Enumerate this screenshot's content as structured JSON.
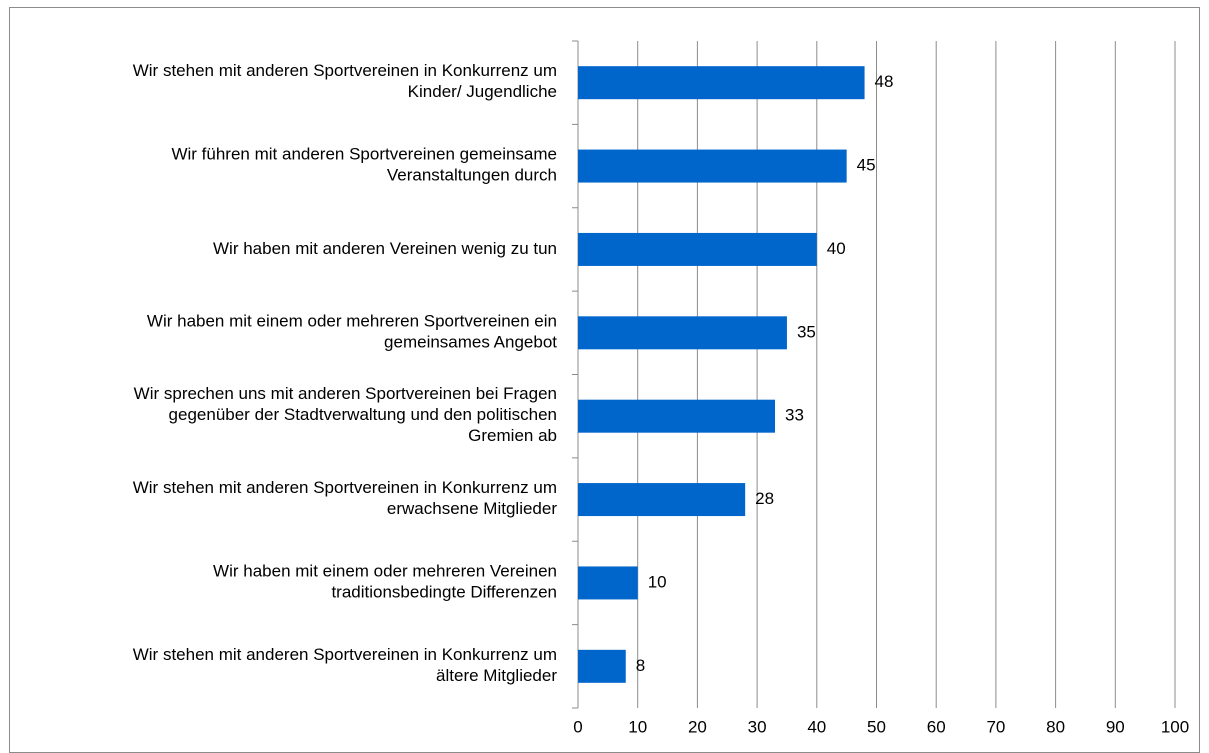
{
  "chart_data": {
    "type": "bar",
    "orientation": "horizontal",
    "categories": [
      "Wir stehen mit anderen Sportvereinen in Konkurrenz um\nKinder/ Jugendliche",
      "Wir führen mit anderen Sportvereinen gemeinsame\nVeranstaltungen durch",
      "Wir haben mit anderen Vereinen wenig zu tun",
      "Wir haben mit einem oder mehreren Sportvereinen ein\ngemeinsames Angebot",
      "Wir sprechen uns mit anderen Sportvereinen bei Fragen\ngegenüber der Stadtverwaltung und den politischen\nGremien ab",
      "Wir stehen mit anderen Sportvereinen in Konkurrenz um\nerwachsene Mitglieder",
      "Wir haben mit einem oder mehreren Vereinen\ntraditionsbedingte Differenzen",
      "Wir stehen mit anderen Sportvereinen in Konkurrenz um\nältere Mitglieder"
    ],
    "values": [
      48,
      45,
      40,
      35,
      33,
      28,
      10,
      8
    ],
    "color": "#0066cc",
    "xlim": [
      0,
      100
    ],
    "xticks": [
      0,
      10,
      20,
      30,
      40,
      50,
      60,
      70,
      80,
      90,
      100
    ],
    "grid": true
  }
}
